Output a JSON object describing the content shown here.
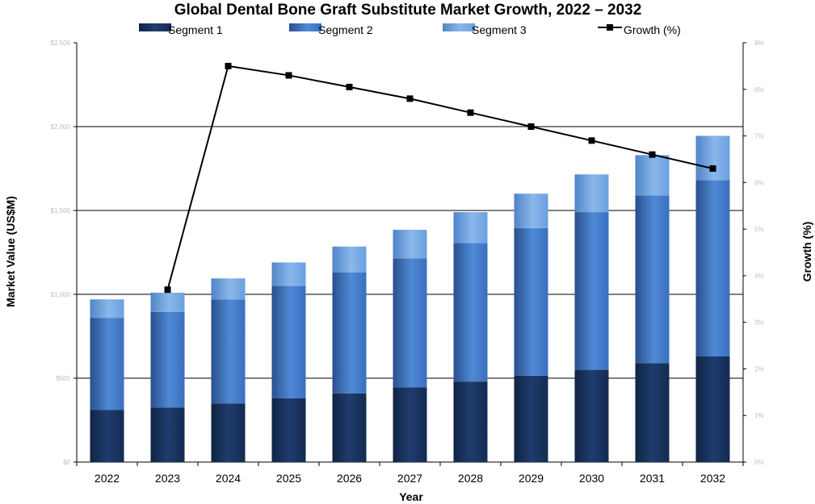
{
  "chart_data": {
    "type": "bar",
    "stacked": true,
    "title": "Global Dental Bone Graft Substitute Market Growth, 2022 – 2032",
    "xlabel": "Year",
    "ylabel": "Market Value (US$M)",
    "y2label": "Growth (%)",
    "categories": [
      "2022",
      "2023",
      "2024",
      "2025",
      "2026",
      "2027",
      "2028",
      "2029",
      "2030",
      "2031",
      "2032"
    ],
    "ylim": [
      0,
      5
    ],
    "y2lim": [
      0,
      9
    ],
    "grid": true,
    "legend_position": "top",
    "series": [
      {
        "name": "Segment 1",
        "kind": "bar",
        "color": "#1f3864",
        "values": [
          0.62,
          0.65,
          0.7,
          0.76,
          0.82,
          0.89,
          0.96,
          1.03,
          1.1,
          1.18,
          1.26
        ]
      },
      {
        "name": "Segment 2",
        "kind": "bar",
        "color": "#3a6fbf",
        "values": [
          1.1,
          1.14,
          1.24,
          1.34,
          1.44,
          1.54,
          1.65,
          1.76,
          1.88,
          2.0,
          2.1
        ]
      },
      {
        "name": "Segment 3",
        "kind": "bar",
        "color": "#6a9fe0",
        "values": [
          0.22,
          0.23,
          0.25,
          0.28,
          0.31,
          0.34,
          0.37,
          0.41,
          0.45,
          0.48,
          0.53
        ]
      },
      {
        "name": "Growth (%)",
        "kind": "line",
        "axis": "y2",
        "color": "#000000",
        "values": [
          null,
          3.7,
          8.5,
          8.3,
          8.05,
          7.8,
          7.5,
          7.2,
          6.9,
          6.6,
          6.3
        ]
      }
    ],
    "y_ticks_blurred": [
      "$2,500",
      "$2,000",
      "$1,500",
      "$1,000",
      "$500",
      "$0"
    ],
    "y2_ticks_blurred": [
      "9%",
      "8%",
      "7%",
      "6%",
      "5%",
      "4%",
      "3%",
      "2%",
      "1%",
      "0%"
    ]
  }
}
